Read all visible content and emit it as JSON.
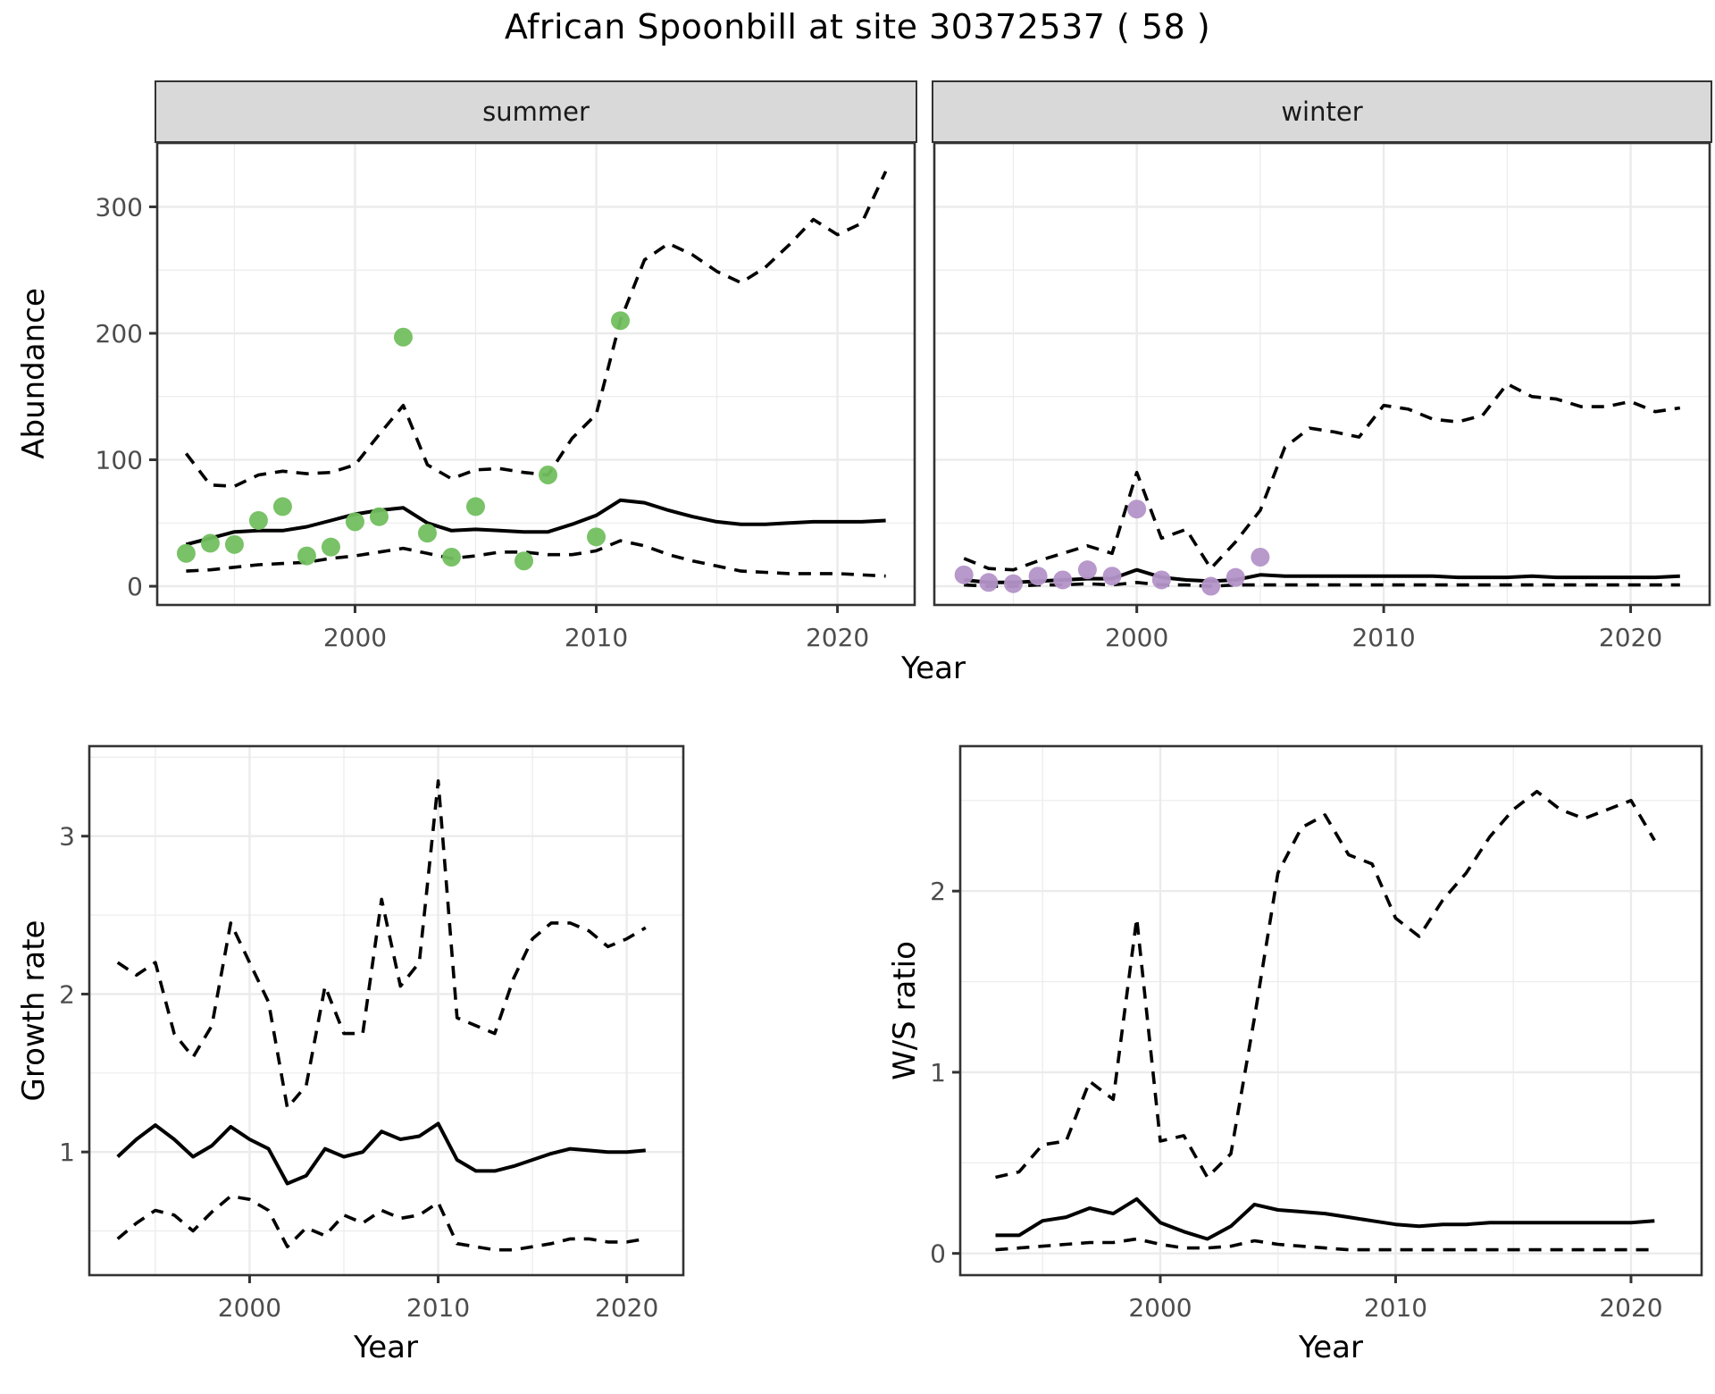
{
  "title": "African Spoonbill at site 30372537 ( 58 )",
  "facets": [
    {
      "label": "summer"
    },
    {
      "label": "winter"
    }
  ],
  "axis_titles": {
    "abundance": "Abundance",
    "growth_rate": "Growth rate",
    "ws_ratio": "W/S ratio",
    "year": "Year"
  },
  "colors": {
    "summer_point": "#72bf5f",
    "winter_point": "#b493c8",
    "line": "#000000",
    "grid_major": "#ebebeb",
    "grid_minor": "#ebebeb",
    "panel_border": "#333333",
    "tick_mark": "#333333",
    "tick_text": "#4d4d4d",
    "strip_bg": "#d9d9d9"
  },
  "chart_data": [
    {
      "id": "abundance-summer",
      "type": "line",
      "facet": "summer",
      "ylabel": "Abundance",
      "xlabel": "Year",
      "xlim": [
        1991.8,
        2023.2
      ],
      "ylim": [
        -14.8,
        350.5
      ],
      "xticks": [
        2000,
        2010,
        2020
      ],
      "xminor": [
        1995,
        2005,
        2015
      ],
      "yticks": [
        0,
        100,
        200,
        300
      ],
      "yminor": [
        50,
        150,
        250,
        350
      ],
      "x": [
        1993,
        1994,
        1995,
        1996,
        1997,
        1998,
        1999,
        2000,
        2001,
        2002,
        2003,
        2004,
        2005,
        2006,
        2007,
        2008,
        2009,
        2010,
        2011,
        2012,
        2013,
        2014,
        2015,
        2016,
        2017,
        2018,
        2019,
        2020,
        2021,
        2022
      ],
      "series": [
        {
          "name": "upper-credible",
          "style": "dashed",
          "values": [
            105,
            80,
            79,
            88,
            91,
            89,
            90,
            96,
            120,
            143,
            96,
            85,
            92,
            93,
            90,
            88,
            117,
            136,
            210,
            258,
            271,
            262,
            249,
            240,
            252,
            270,
            290,
            278,
            287,
            328
          ]
        },
        {
          "name": "median",
          "style": "solid",
          "values": [
            33,
            38,
            43,
            44,
            44,
            47,
            52,
            57,
            60,
            62,
            50,
            44,
            45,
            44,
            43,
            43,
            49,
            56,
            68,
            66,
            60,
            55,
            51,
            49,
            49,
            50,
            51,
            51,
            51,
            52
          ]
        },
        {
          "name": "lower-credible",
          "style": "dashed",
          "values": [
            12,
            13,
            15,
            17,
            18,
            19,
            22,
            24,
            27,
            30,
            26,
            22,
            24,
            27,
            27,
            25,
            25,
            28,
            36,
            32,
            25,
            20,
            16,
            12,
            11,
            10,
            10,
            10,
            9,
            8
          ]
        }
      ],
      "points": {
        "name": "summer-observations",
        "color": "#72bf5f",
        "x": [
          1993,
          1994,
          1995,
          1996,
          1997,
          1998,
          1999,
          2000,
          2001,
          2002,
          2003,
          2004,
          2005,
          2007,
          2008,
          2010,
          2011
        ],
        "y": [
          26,
          34,
          33,
          52,
          63,
          24,
          31,
          51,
          55,
          197,
          42,
          23,
          63,
          20,
          88,
          39,
          210
        ]
      }
    },
    {
      "id": "abundance-winter",
      "type": "line",
      "facet": "winter",
      "ylabel": "Abundance",
      "xlabel": "Year",
      "xlim": [
        1991.8,
        2023.2
      ],
      "ylim": [
        -14.8,
        350.5
      ],
      "xticks": [
        2000,
        2010,
        2020
      ],
      "xminor": [
        1995,
        2005,
        2015
      ],
      "yticks": [
        0,
        100,
        200,
        300
      ],
      "yminor": [
        50,
        150,
        250,
        350
      ],
      "x": [
        1993,
        1994,
        1995,
        1996,
        1997,
        1998,
        1999,
        2000,
        2001,
        2002,
        2003,
        2004,
        2005,
        2006,
        2007,
        2008,
        2009,
        2010,
        2011,
        2012,
        2013,
        2014,
        2015,
        2016,
        2017,
        2018,
        2019,
        2020,
        2021,
        2022
      ],
      "series": [
        {
          "name": "upper-credible",
          "style": "dashed",
          "values": [
            22,
            14,
            13,
            20,
            26,
            32,
            26,
            90,
            38,
            45,
            14,
            35,
            60,
            110,
            125,
            122,
            118,
            143,
            140,
            132,
            130,
            135,
            160,
            150,
            148,
            142,
            142,
            146,
            138,
            141
          ]
        },
        {
          "name": "median",
          "style": "solid",
          "values": [
            5,
            3,
            3,
            4,
            5,
            6,
            6,
            13,
            7,
            5,
            4,
            5,
            9,
            8,
            8,
            8,
            8,
            8,
            8,
            8,
            7,
            7,
            7,
            8,
            7,
            7,
            7,
            7,
            7,
            8
          ]
        },
        {
          "name": "lower-credible",
          "style": "dashed",
          "values": [
            1,
            0,
            0,
            1,
            1,
            2,
            1,
            3,
            1,
            1,
            0,
            1,
            1,
            1,
            1,
            1,
            1,
            1,
            1,
            1,
            1,
            1,
            1,
            1,
            1,
            1,
            1,
            1,
            1,
            1
          ]
        }
      ],
      "points": {
        "name": "winter-observations",
        "color": "#b493c8",
        "x": [
          1993,
          1994,
          1995,
          1996,
          1997,
          1998,
          1999,
          2000,
          2001,
          2003,
          2004,
          2005
        ],
        "y": [
          9,
          3,
          2,
          8,
          5,
          13,
          8,
          61,
          5,
          0,
          7,
          23
        ]
      }
    },
    {
      "id": "growth-rate",
      "type": "line",
      "ylabel": "Growth rate",
      "xlabel": "Year",
      "xlim": [
        1991.5,
        2023.0
      ],
      "ylim": [
        0.22,
        3.57
      ],
      "xticks": [
        2000,
        2010,
        2020
      ],
      "xminor": [
        1995,
        2005,
        2015
      ],
      "yticks": [
        1,
        2,
        3
      ],
      "yminor": [
        0.5,
        1.5,
        2.5,
        3.5
      ],
      "x": [
        1993,
        1994,
        1995,
        1996,
        1997,
        1998,
        1999,
        2000,
        2001,
        2002,
        2003,
        2004,
        2005,
        2006,
        2007,
        2008,
        2009,
        2010,
        2011,
        2012,
        2013,
        2014,
        2015,
        2016,
        2017,
        2018,
        2019,
        2020,
        2021
      ],
      "series": [
        {
          "name": "upper-credible",
          "style": "dashed",
          "values": [
            2.2,
            2.12,
            2.2,
            1.75,
            1.6,
            1.8,
            2.45,
            2.2,
            1.95,
            1.28,
            1.42,
            2.05,
            1.75,
            1.75,
            2.6,
            2.05,
            2.2,
            3.35,
            1.85,
            1.8,
            1.75,
            2.1,
            2.35,
            2.45,
            2.45,
            2.4,
            2.3,
            2.35,
            2.42
          ]
        },
        {
          "name": "median",
          "style": "solid",
          "values": [
            0.97,
            1.08,
            1.17,
            1.08,
            0.97,
            1.04,
            1.16,
            1.08,
            1.02,
            0.8,
            0.85,
            1.02,
            0.97,
            1.0,
            1.13,
            1.08,
            1.1,
            1.18,
            0.95,
            0.88,
            0.88,
            0.91,
            0.95,
            0.99,
            1.02,
            1.01,
            1.0,
            1.0,
            1.01
          ]
        },
        {
          "name": "lower-credible",
          "style": "dashed",
          "values": [
            0.45,
            0.55,
            0.63,
            0.6,
            0.5,
            0.62,
            0.72,
            0.7,
            0.63,
            0.4,
            0.52,
            0.47,
            0.6,
            0.55,
            0.63,
            0.58,
            0.6,
            0.68,
            0.42,
            0.4,
            0.38,
            0.38,
            0.4,
            0.42,
            0.45,
            0.45,
            0.43,
            0.43,
            0.45
          ]
        }
      ]
    },
    {
      "id": "ws-ratio",
      "type": "line",
      "ylabel": "W/S ratio",
      "xlabel": "Year",
      "xlim": [
        1991.5,
        2023.0
      ],
      "ylim": [
        -0.12,
        2.8
      ],
      "xticks": [
        2000,
        2010,
        2020
      ],
      "xminor": [
        1995,
        2005,
        2015
      ],
      "yticks": [
        0,
        1,
        2
      ],
      "yminor": [
        0.5,
        1.5,
        2.5
      ],
      "x": [
        1993,
        1994,
        1995,
        1996,
        1997,
        1998,
        1999,
        2000,
        2001,
        2002,
        2003,
        2004,
        2005,
        2006,
        2007,
        2008,
        2009,
        2010,
        2011,
        2012,
        2013,
        2014,
        2015,
        2016,
        2017,
        2018,
        2019,
        2020,
        2021
      ],
      "series": [
        {
          "name": "upper-credible",
          "style": "dashed",
          "values": [
            0.42,
            0.45,
            0.6,
            0.62,
            0.95,
            0.85,
            1.85,
            0.62,
            0.65,
            0.42,
            0.55,
            1.3,
            2.1,
            2.35,
            2.42,
            2.2,
            2.15,
            1.85,
            1.75,
            1.95,
            2.1,
            2.3,
            2.45,
            2.55,
            2.45,
            2.4,
            2.45,
            2.5,
            2.28
          ]
        },
        {
          "name": "median",
          "style": "solid",
          "values": [
            0.1,
            0.1,
            0.18,
            0.2,
            0.25,
            0.22,
            0.3,
            0.17,
            0.12,
            0.08,
            0.15,
            0.27,
            0.24,
            0.23,
            0.22,
            0.2,
            0.18,
            0.16,
            0.15,
            0.16,
            0.16,
            0.17,
            0.17,
            0.17,
            0.17,
            0.17,
            0.17,
            0.17,
            0.18
          ]
        },
        {
          "name": "lower-credible",
          "style": "dashed",
          "values": [
            0.02,
            0.03,
            0.04,
            0.05,
            0.06,
            0.06,
            0.08,
            0.05,
            0.03,
            0.03,
            0.04,
            0.07,
            0.05,
            0.04,
            0.03,
            0.02,
            0.02,
            0.02,
            0.02,
            0.02,
            0.02,
            0.02,
            0.02,
            0.02,
            0.02,
            0.02,
            0.02,
            0.02,
            0.02
          ]
        }
      ]
    }
  ]
}
